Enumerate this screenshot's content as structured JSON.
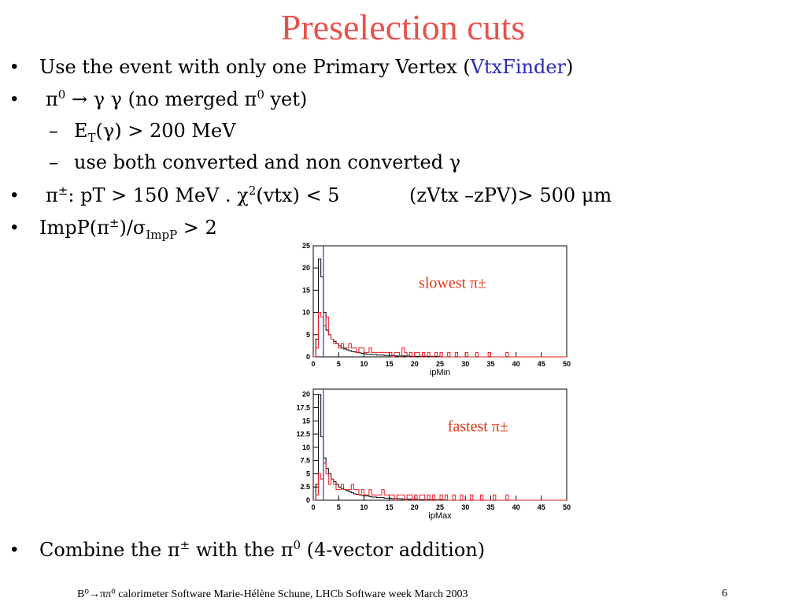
{
  "title": "Preselection cuts",
  "bullets": {
    "b1_text": "Use the event with only one Primary Vertex (",
    "b1_link": "VtxFinder",
    "b1_close": ")",
    "b2_pi": "π",
    "b2_sup0": "0",
    "b2_rest": " → γ γ (no merged π",
    "b2_sup1": "0",
    "b2_end": " yet)",
    "s1_dash": "–",
    "s1_e": "E",
    "s1_sub": "T",
    "s1_rest": "(γ) >  200 MeV",
    "s2_dash": "–",
    "s2_text": "use both converted and non converted γ",
    "b3_pi": "π",
    "b3_sup": "±",
    "b3_mid": ": pT > 150 MeV . χ",
    "b3_sup2": "2",
    "b3_rest": "(vtx) < 5",
    "b3_cut": "(zVtx –zPV)> 500 μm",
    "b4_a": "ImpP(π",
    "b4_sup": "±",
    "b4_b": ")/σ",
    "b4_sub": "ImpP",
    "b4_c": " > 2",
    "b5_a": "Combine the π",
    "b5_sup": "±",
    "b5_b": " with the π",
    "b5_sup2": "0",
    "b5_c": "  (4-vector addition)",
    "bullet_char": "•"
  },
  "footer": {
    "text": "B⁰→ππ⁰ calorimeter Software Marie-Hélène Schune, LHCb Software week March 2003",
    "page": "6"
  },
  "colors": {
    "title": "#e8524c",
    "link": "#2a2ab8",
    "red_hist": "#e8191e",
    "black_hist": "#000000",
    "cut_line": "#3333cc",
    "annotation": "#e03a16"
  },
  "chart_data": [
    {
      "type": "bar",
      "xlabel": "ipMin",
      "annotation": "slowest π±",
      "xlim": [
        0,
        50
      ],
      "ylim": [
        0,
        25
      ],
      "xticks": [
        0,
        5,
        10,
        15,
        20,
        25,
        30,
        35,
        40,
        45,
        50
      ],
      "yticks": [
        0,
        5,
        10,
        15,
        20,
        25
      ],
      "ytick_labels": [
        "0",
        "5",
        "10",
        "15",
        "20",
        "25"
      ],
      "cut_x": 2,
      "bin_width": 0.5,
      "series": [
        {
          "color": "black",
          "values": [
            0,
            4,
            22,
            18,
            10,
            6,
            5,
            4,
            3.5,
            3,
            2.5,
            2,
            1.8,
            1.6,
            1.4,
            1.2,
            1.1,
            1,
            0.9,
            0.8,
            0.7,
            0.6,
            0.6,
            0.5,
            0.5,
            0.4,
            0.4,
            0.4,
            0.3,
            0.3,
            0.3,
            0.3,
            0.2,
            0.2,
            0.2,
            0.2,
            0.2,
            0.2,
            0.1,
            0.1,
            0.1,
            0.1,
            0.1,
            0.1,
            0.1,
            0.1,
            0.1,
            0.1,
            0.1,
            0.1,
            0,
            0,
            0,
            0,
            0,
            0,
            0,
            0,
            0,
            0,
            0,
            0,
            0,
            0,
            0,
            0,
            0,
            0,
            0,
            0,
            0,
            0,
            0,
            0,
            0,
            0,
            0,
            0,
            0,
            0,
            0,
            0,
            0,
            0,
            0,
            0,
            0,
            0,
            0,
            0,
            0,
            0,
            0,
            0,
            0,
            0,
            0,
            0,
            0,
            0
          ]
        },
        {
          "color": "red",
          "values": [
            0,
            2,
            10,
            9,
            7,
            9,
            5,
            4,
            3,
            3,
            2,
            3,
            2,
            2,
            3,
            2,
            2,
            1,
            2,
            2,
            1,
            1,
            2,
            1,
            1,
            1,
            1,
            1,
            1,
            1,
            1,
            0,
            1,
            1,
            0,
            2,
            1,
            0,
            1,
            0,
            1,
            1,
            0,
            1,
            0,
            1,
            0,
            0,
            1,
            0,
            1,
            0,
            0,
            1,
            0,
            0,
            1,
            0,
            0,
            0,
            1,
            0,
            0,
            0,
            1,
            0,
            0,
            0,
            0,
            1,
            0,
            0,
            0,
            0,
            0,
            0,
            1,
            0,
            0,
            0,
            0,
            0,
            0,
            0,
            0,
            0,
            0,
            0,
            0,
            0,
            0,
            0,
            0,
            0,
            0,
            0,
            0,
            0,
            0,
            0
          ]
        }
      ]
    },
    {
      "type": "bar",
      "xlabel": "ipMax",
      "annotation": "fastest π±",
      "xlim": [
        0,
        50
      ],
      "ylim": [
        0,
        21
      ],
      "xticks": [
        0,
        5,
        10,
        15,
        20,
        25,
        30,
        35,
        40,
        45,
        50
      ],
      "yticks": [
        0,
        2.5,
        5,
        7.5,
        10,
        12.5,
        15,
        17.5,
        20
      ],
      "ytick_labels": [
        "0",
        "2.5",
        "5",
        "7.5",
        "10",
        "12.5",
        "15",
        "17.5",
        "20"
      ],
      "cut_x": 2,
      "bin_width": 0.5,
      "series": [
        {
          "color": "black",
          "values": [
            0,
            3,
            20,
            12,
            8,
            6,
            5,
            4,
            3.5,
            3,
            2.5,
            2.2,
            2,
            1.8,
            1.6,
            1.4,
            1.2,
            1.1,
            1,
            0.9,
            0.8,
            0.8,
            0.7,
            0.6,
            0.6,
            0.5,
            0.5,
            0.5,
            0.4,
            0.4,
            0.4,
            0.3,
            0.3,
            0.3,
            0.3,
            0.2,
            0.2,
            0.2,
            0.2,
            0.2,
            0.2,
            0.1,
            0.1,
            0.1,
            0.1,
            0.1,
            0.1,
            0.1,
            0.1,
            0.1,
            0.1,
            0.1,
            0,
            0,
            0,
            0,
            0,
            0,
            0,
            0,
            0,
            0,
            0,
            0,
            0,
            0,
            0,
            0,
            0,
            0,
            0,
            0,
            0,
            0,
            0,
            0,
            0,
            0,
            0,
            0,
            0,
            0,
            0,
            0,
            0,
            0,
            0,
            0,
            0,
            0,
            0,
            0,
            0,
            0,
            0,
            0,
            0,
            0,
            0,
            0
          ]
        },
        {
          "color": "red",
          "values": [
            0,
            1,
            5,
            4,
            7,
            5,
            3,
            4,
            3,
            2,
            2,
            3,
            2,
            2,
            2,
            3,
            2,
            2,
            1,
            2,
            1,
            1,
            2,
            1,
            1,
            1,
            1,
            2,
            1,
            1,
            1,
            1,
            0,
            1,
            1,
            1,
            0,
            1,
            1,
            0,
            1,
            0,
            1,
            1,
            0,
            1,
            0,
            1,
            0,
            0,
            1,
            0,
            1,
            0,
            0,
            1,
            0,
            0,
            1,
            0,
            0,
            0,
            1,
            0,
            0,
            0,
            1,
            0,
            0,
            0,
            0,
            1,
            0,
            0,
            0,
            0,
            1,
            0,
            0,
            0,
            0,
            0,
            0,
            0,
            0,
            0,
            0,
            0,
            0,
            0,
            0,
            0,
            0,
            0,
            0,
            0,
            0,
            0,
            0,
            0
          ]
        }
      ]
    }
  ]
}
